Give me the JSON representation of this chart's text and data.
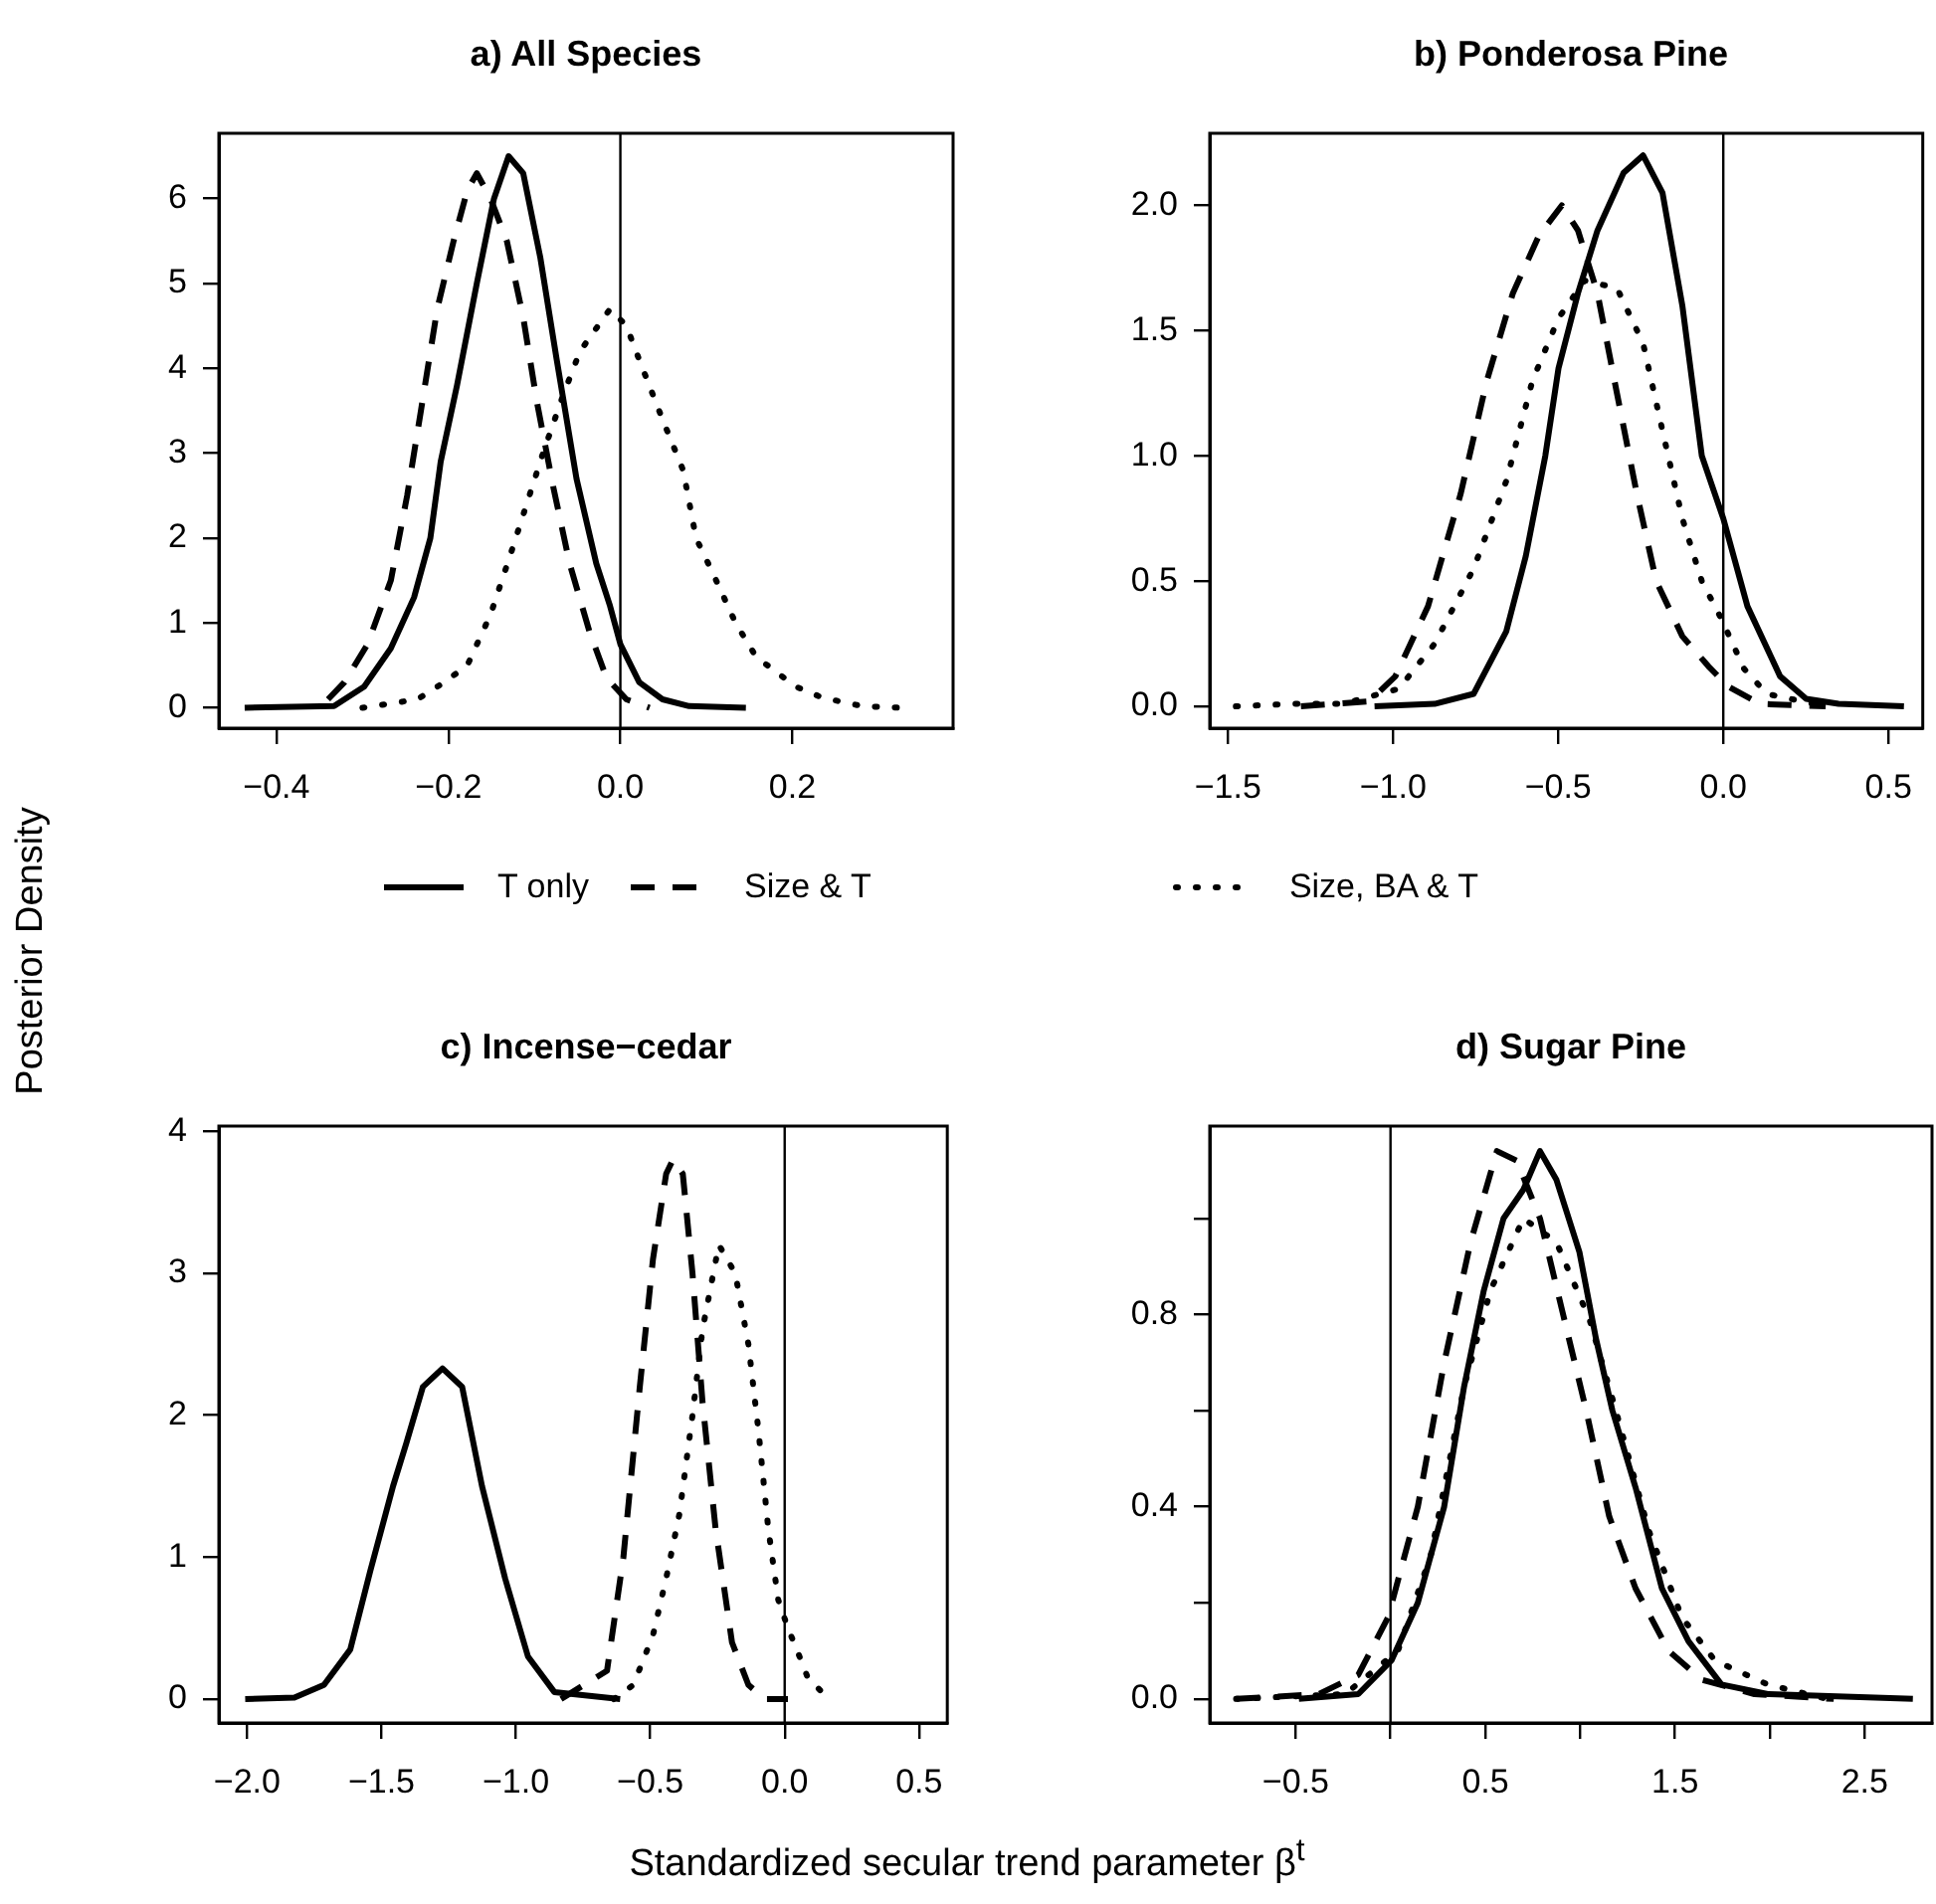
{
  "chart_data": [
    {
      "type": "line",
      "title": "a) All Species",
      "ylabel": "Posterior Density",
      "legend": "bottom",
      "marker": "none",
      "grid": false,
      "xlim": [
        -0.467,
        0.387
      ],
      "ylim": [
        -0.24,
        6.77
      ],
      "xticks": [
        -0.4,
        -0.2,
        {
          "value": 0,
          "label": "0.0"
        },
        0.2
      ],
      "yticks": [
        0,
        1,
        2,
        3,
        4,
        5,
        6
      ],
      "ref_lines": [
        {
          "axis": "x",
          "value": 0,
          "color": "#000000"
        }
      ],
      "series": [
        {
          "name": "T only",
          "color": "#000000",
          "line_style": "solid",
          "x": [
            -0.437,
            -0.333,
            -0.298,
            -0.267,
            -0.24,
            -0.221,
            -0.209,
            -0.19,
            -0.167,
            -0.147,
            -0.13,
            -0.113,
            -0.093,
            -0.074,
            -0.051,
            -0.028,
            -0.012,
            0,
            0.022,
            0.049,
            0.08,
            0.146
          ],
          "values": [
            0,
            0.02,
            0.25,
            0.7,
            1.3,
            2.0,
            2.9,
            3.8,
            5.0,
            6.0,
            6.5,
            6.3,
            5.3,
            4.1,
            2.7,
            1.7,
            1.2,
            0.75,
            0.3,
            0.1,
            0.02,
            0
          ]
        },
        {
          "name": "Size & T",
          "color": "#000000",
          "line_style": "dashed",
          "x": [
            -0.34,
            -0.321,
            -0.294,
            -0.267,
            -0.248,
            -0.232,
            -0.213,
            -0.194,
            -0.178,
            -0.167,
            -0.151,
            -0.132,
            -0.113,
            -0.097,
            -0.078,
            -0.059,
            -0.036,
            -0.016,
            0.007,
            0.034
          ],
          "values": [
            0.1,
            0.3,
            0.75,
            1.5,
            2.5,
            3.5,
            4.7,
            5.5,
            6.1,
            6.3,
            6.0,
            5.5,
            4.6,
            3.6,
            2.6,
            1.7,
            0.9,
            0.35,
            0.1,
            0
          ]
        },
        {
          "name": "Size, BA & T",
          "color": "#000000",
          "line_style": "dotted",
          "x": [
            -0.3,
            -0.236,
            -0.205,
            -0.178,
            -0.151,
            -0.128,
            -0.109,
            -0.09,
            -0.066,
            -0.047,
            -0.012,
            0.007,
            0.022,
            0.049,
            0.073,
            0.088,
            0.107,
            0.134,
            0.158,
            0.204,
            0.235,
            0.281,
            0.327
          ],
          "values": [
            0,
            0.1,
            0.3,
            0.5,
            1.1,
            1.8,
            2.4,
            3.0,
            3.7,
            4.2,
            4.7,
            4.5,
            4.1,
            3.4,
            2.8,
            2.0,
            1.6,
            1.0,
            0.6,
            0.25,
            0.12,
            0.02,
            0
          ]
        }
      ]
    },
    {
      "type": "line",
      "title": "b) Ponderosa Pine",
      "marker": "none",
      "grid": false,
      "xlim": [
        -1.555,
        0.604
      ],
      "ylim": [
        -0.087,
        2.288
      ],
      "xticks": [
        -1.5,
        {
          "value": -1,
          "label": "−1.0"
        },
        -0.5,
        {
          "value": 0,
          "label": "0.0"
        },
        0.5
      ],
      "yticks": [
        {
          "value": 0,
          "label": "0.0"
        },
        0.5,
        {
          "value": 1,
          "label": "1.0"
        },
        1.5,
        {
          "value": 2,
          "label": "2.0"
        }
      ],
      "ref_lines": [
        {
          "axis": "x",
          "value": 0,
          "color": "#000000"
        }
      ],
      "series": [
        {
          "color": "#000000",
          "line_style": "solid",
          "x": [
            -1.056,
            -0.874,
            -0.756,
            -0.657,
            -0.598,
            -0.539,
            -0.499,
            -0.44,
            -0.381,
            -0.302,
            -0.243,
            -0.184,
            -0.124,
            -0.065,
            0,
            0.073,
            0.172,
            0.251,
            0.349,
            0.547
          ],
          "values": [
            0,
            0.01,
            0.05,
            0.3,
            0.6,
            1.0,
            1.35,
            1.65,
            1.9,
            2.13,
            2.2,
            2.05,
            1.6,
            1.0,
            0.75,
            0.4,
            0.12,
            0.03,
            0.01,
            0
          ]
        },
        {
          "color": "#000000",
          "line_style": "dashed",
          "x": [
            -1.279,
            -1.072,
            -0.993,
            -0.894,
            -0.795,
            -0.716,
            -0.637,
            -0.558,
            -0.489,
            -0.44,
            -0.381,
            -0.322,
            -0.262,
            -0.203,
            -0.124,
            -0.045,
            0.014,
            0.112,
            0.31
          ],
          "values": [
            0,
            0.02,
            0.12,
            0.4,
            0.85,
            1.3,
            1.65,
            1.88,
            2.0,
            1.9,
            1.65,
            1.25,
            0.85,
            0.5,
            0.28,
            0.16,
            0.08,
            0.01,
            0
          ]
        },
        {
          "color": "#000000",
          "line_style": "dotted",
          "x": [
            -1.476,
            -1.308,
            -1.151,
            -0.983,
            -0.874,
            -0.756,
            -0.657,
            -0.578,
            -0.499,
            -0.42,
            -0.322,
            -0.243,
            -0.184,
            -0.124,
            -0.065,
            -0.006,
            0.063,
            0.132,
            0.31
          ],
          "values": [
            0,
            0.01,
            0.01,
            0.07,
            0.25,
            0.55,
            0.9,
            1.3,
            1.55,
            1.7,
            1.67,
            1.45,
            1.1,
            0.75,
            0.5,
            0.35,
            0.15,
            0.05,
            0
          ]
        }
      ]
    },
    {
      "type": "line",
      "title": "c) Incense−cedar",
      "xlabel": "Standardized secular trend parameter β$^{t}$",
      "marker": "none",
      "grid": false,
      "xlim": [
        -2.105,
        0.605
      ],
      "ylim": [
        -0.168,
        4.037
      ],
      "xticks": [
        {
          "value": -2,
          "label": "−2.0"
        },
        -1.5,
        {
          "value": -1,
          "label": "−1.0"
        },
        -0.5,
        {
          "value": 0,
          "label": "0.0"
        },
        0.5
      ],
      "yticks": [
        0,
        1,
        2,
        3,
        4
      ],
      "ref_lines": [
        {
          "axis": "x",
          "value": 0,
          "color": "#000000"
        }
      ],
      "series": [
        {
          "color": "#000000",
          "line_style": "solid",
          "x": [
            -2.007,
            -1.824,
            -1.714,
            -1.616,
            -1.542,
            -1.457,
            -1.408,
            -1.346,
            -1.273,
            -1.2,
            -1.126,
            -1.04,
            -0.955,
            -0.857,
            -0.612
          ],
          "values": [
            0,
            0.01,
            0.1,
            0.35,
            0.9,
            1.5,
            1.8,
            2.2,
            2.33,
            2.2,
            1.5,
            0.85,
            0.3,
            0.05,
            0
          ]
        },
        {
          "color": "#000000",
          "line_style": "dashed",
          "x": [
            -0.832,
            -0.661,
            -0.6,
            -0.539,
            -0.49,
            -0.441,
            -0.416,
            -0.379,
            -0.343,
            -0.306,
            -0.257,
            -0.196,
            -0.135,
            -0.073,
            0.012
          ],
          "values": [
            0,
            0.2,
            1.0,
            2.2,
            3.1,
            3.7,
            3.8,
            3.7,
            3.0,
            2.1,
            1.2,
            0.4,
            0.1,
            0,
            0
          ]
        },
        {
          "color": "#000000",
          "line_style": "dotted",
          "x": [
            -0.636,
            -0.563,
            -0.49,
            -0.441,
            -0.392,
            -0.343,
            -0.306,
            -0.245,
            -0.184,
            -0.135,
            -0.098,
            -0.061,
            -0.024,
            0.012,
            0.049,
            0.086,
            0.159
          ],
          "values": [
            0,
            0.1,
            0.45,
            0.85,
            1.3,
            2.0,
            2.6,
            3.2,
            3.0,
            2.5,
            1.9,
            1.2,
            0.7,
            0.5,
            0.33,
            0.15,
            0.01
          ]
        }
      ]
    },
    {
      "type": "line",
      "title": "d) Sugar Pine",
      "marker": "none",
      "grid": false,
      "xlim": [
        -0.953,
        2.855
      ],
      "ylim": [
        -0.05,
        1.192
      ],
      "xticks": [
        -0.5,
        {
          "value": 0,
          "label": null
        },
        0.5,
        {
          "value": 1,
          "label": null
        },
        1.5,
        {
          "value": 2,
          "label": null
        },
        2.5
      ],
      "yticks": [
        {
          "value": 0,
          "label": "0.0"
        },
        {
          "value": 0.2,
          "label": null
        },
        0.4,
        {
          "value": 0.6,
          "label": null
        },
        0.8,
        {
          "value": 1,
          "label": null
        }
      ],
      "ref_lines": [
        {
          "axis": "x",
          "value": 0,
          "color": "#000000"
        }
      ],
      "series": [
        {
          "color": "#000000",
          "line_style": "solid",
          "x": [
            -0.483,
            -0.17,
            0.005,
            0.144,
            0.283,
            0.388,
            0.492,
            0.596,
            0.701,
            0.788,
            0.875,
            0.996,
            1.083,
            1.17,
            1.292,
            1.431,
            1.571,
            1.745,
            1.989,
            2.754
          ],
          "values": [
            0,
            0.01,
            0.08,
            0.2,
            0.4,
            0.65,
            0.85,
            1.0,
            1.06,
            1.14,
            1.08,
            0.93,
            0.75,
            0.6,
            0.44,
            0.23,
            0.12,
            0.03,
            0.01,
            0
          ]
        },
        {
          "color": "#000000",
          "line_style": "dashed",
          "x": [
            -0.814,
            -0.379,
            -0.17,
            -0.013,
            0.144,
            0.283,
            0.422,
            0.561,
            0.666,
            0.788,
            0.91,
            1.032,
            1.153,
            1.292,
            1.466,
            1.64,
            1.919,
            2.337
          ],
          "values": [
            0,
            0.01,
            0.05,
            0.17,
            0.4,
            0.7,
            0.95,
            1.14,
            1.12,
            1.0,
            0.8,
            0.6,
            0.38,
            0.23,
            0.1,
            0.04,
            0.01,
            0
          ]
        },
        {
          "color": "#000000",
          "line_style": "dotted",
          "x": [
            -0.814,
            -0.239,
            0.039,
            0.213,
            0.388,
            0.527,
            0.701,
            0.875,
            1.049,
            1.188,
            1.362,
            1.536,
            1.71,
            1.989,
            2.302
          ],
          "values": [
            0,
            0.01,
            0.1,
            0.3,
            0.65,
            0.85,
            1.0,
            0.95,
            0.79,
            0.6,
            0.35,
            0.17,
            0.08,
            0.03,
            0
          ]
        }
      ]
    }
  ]
}
